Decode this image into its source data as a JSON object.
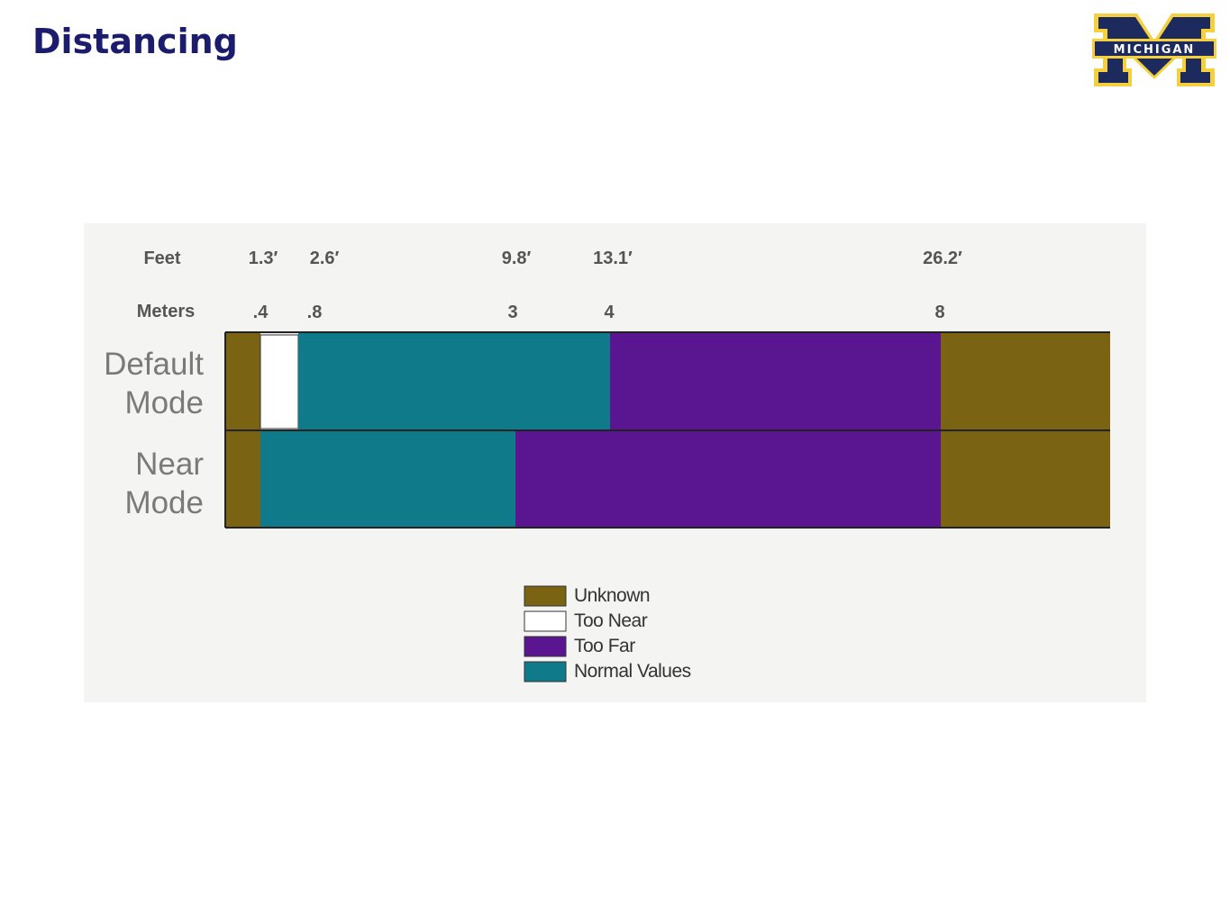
{
  "header": {
    "title": "Distancing",
    "logo": "MICHIGAN"
  },
  "figure": {
    "row_headers": [
      "Feet",
      "Meters"
    ],
    "feet": [
      "1.3′",
      "2.6′",
      "9.8′",
      "13.1′",
      "26.2′"
    ],
    "meters": [
      ".4",
      ".8",
      "3",
      "4",
      "8"
    ],
    "rows": [
      "Default Mode",
      "Near Mode"
    ],
    "legend": [
      "Unknown",
      "Too Near",
      "Too Far",
      "Normal Values"
    ]
  }
}
